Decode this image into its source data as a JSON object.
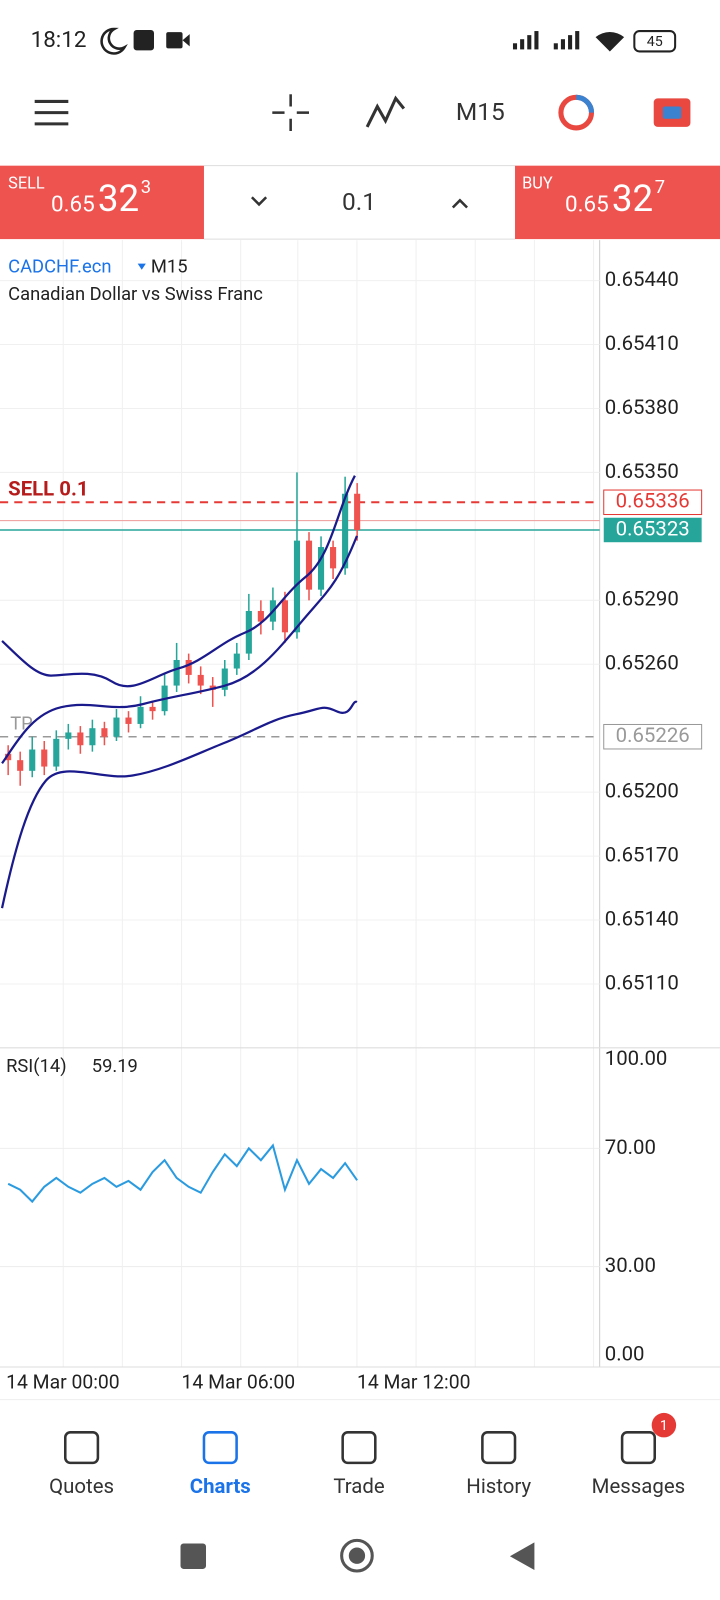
{
  "status": {
    "time": "18:12",
    "battery": "45"
  },
  "toolbar": {
    "timeframe": "M15"
  },
  "trade": {
    "sell_label": "SELL",
    "sell_small": "0.65",
    "sell_big": "32",
    "sell_sup": "3",
    "lot": "0.1",
    "buy_label": "BUY",
    "buy_small": "0.65",
    "buy_big": "32",
    "buy_sup": "7"
  },
  "chart": {
    "symbol": "CADCHF.ecn",
    "timeframe": "M15",
    "description": "Canadian Dollar vs Swiss Franc",
    "ylim": [
      0.65081,
      0.65459
    ],
    "yticks": [
      {
        "value": 0.6544,
        "label": "0.65440"
      },
      {
        "value": 0.6541,
        "label": "0.65410"
      },
      {
        "value": 0.6538,
        "label": "0.65380"
      },
      {
        "value": 0.6535,
        "label": "0.65350"
      },
      {
        "value": 0.6529,
        "label": "0.65290"
      },
      {
        "value": 0.6526,
        "label": "0.65260"
      },
      {
        "value": 0.652,
        "label": "0.65200"
      },
      {
        "value": 0.6517,
        "label": "0.65170"
      },
      {
        "value": 0.6514,
        "label": "0.65140"
      },
      {
        "value": 0.6511,
        "label": "0.65110"
      }
    ],
    "sell_order_label": "SELL 0.1",
    "sell_order_price": 0.65336,
    "bid_price": 0.65323,
    "tp_label": "TP",
    "tp_price": 0.65226,
    "candles": [
      [
        0.65218,
        0.65222,
        0.65208,
        0.65215
      ],
      [
        0.65215,
        0.65219,
        0.65203,
        0.6521
      ],
      [
        0.6521,
        0.65226,
        0.65207,
        0.6522
      ],
      [
        0.6522,
        0.65224,
        0.65208,
        0.65212
      ],
      [
        0.65212,
        0.65229,
        0.6521,
        0.65225
      ],
      [
        0.65225,
        0.65232,
        0.6522,
        0.65228
      ],
      [
        0.65228,
        0.65231,
        0.65218,
        0.65222
      ],
      [
        0.65222,
        0.65234,
        0.65219,
        0.6523
      ],
      [
        0.6523,
        0.65233,
        0.65222,
        0.65226
      ],
      [
        0.65226,
        0.65239,
        0.65224,
        0.65235
      ],
      [
        0.65235,
        0.65238,
        0.65228,
        0.65232
      ],
      [
        0.65232,
        0.65245,
        0.6523,
        0.6524
      ],
      [
        0.6524,
        0.65243,
        0.65234,
        0.65238
      ],
      [
        0.65238,
        0.65256,
        0.65236,
        0.6525
      ],
      [
        0.6525,
        0.6527,
        0.65247,
        0.65262
      ],
      [
        0.65262,
        0.65265,
        0.65251,
        0.65255
      ],
      [
        0.65255,
        0.65259,
        0.65246,
        0.6525
      ],
      [
        0.6525,
        0.65254,
        0.6524,
        0.65248
      ],
      [
        0.65248,
        0.65262,
        0.65245,
        0.65258
      ],
      [
        0.65258,
        0.6527,
        0.65255,
        0.65265
      ],
      [
        0.65265,
        0.65293,
        0.65262,
        0.65285
      ],
      [
        0.65285,
        0.6529,
        0.65274,
        0.6528
      ],
      [
        0.6528,
        0.65296,
        0.65276,
        0.6529
      ],
      [
        0.6529,
        0.65294,
        0.6527,
        0.65275
      ],
      [
        0.65275,
        0.6535,
        0.65272,
        0.65318
      ],
      [
        0.65318,
        0.65322,
        0.6529,
        0.65295
      ],
      [
        0.65295,
        0.6532,
        0.65292,
        0.65315
      ],
      [
        0.65315,
        0.65318,
        0.653,
        0.65305
      ],
      [
        0.65305,
        0.65348,
        0.65302,
        0.6534
      ],
      [
        0.6534,
        0.65345,
        0.65318,
        0.65323
      ]
    ],
    "up_color": "#26a69a",
    "down_color": "#ef5350",
    "rsi_label": "RSI(14)",
    "rsi_value": 59.19,
    "rsi_ylim": [
      -4,
      103
    ],
    "rsi_yticks": [
      {
        "value": 100,
        "label": "100.00"
      },
      {
        "value": 70,
        "label": "70.00"
      },
      {
        "value": 30,
        "label": "30.00"
      },
      {
        "value": 0,
        "label": "0.00"
      }
    ],
    "rsi_values": [
      58,
      56,
      52,
      57,
      60,
      57,
      55,
      58,
      60,
      57,
      59,
      56,
      62,
      66,
      60,
      57,
      55,
      62,
      68,
      64,
      70,
      66,
      71,
      56,
      66,
      58,
      63,
      60,
      65,
      59.19
    ],
    "rsi_color": "#2b9be0",
    "time_labels": [
      "14 Mar 00:00",
      "14 Mar 06:00",
      "14 Mar 12:00"
    ]
  },
  "nav": {
    "items": [
      "Quotes",
      "Charts",
      "Trade",
      "History",
      "Messages"
    ],
    "badge": "1"
  }
}
